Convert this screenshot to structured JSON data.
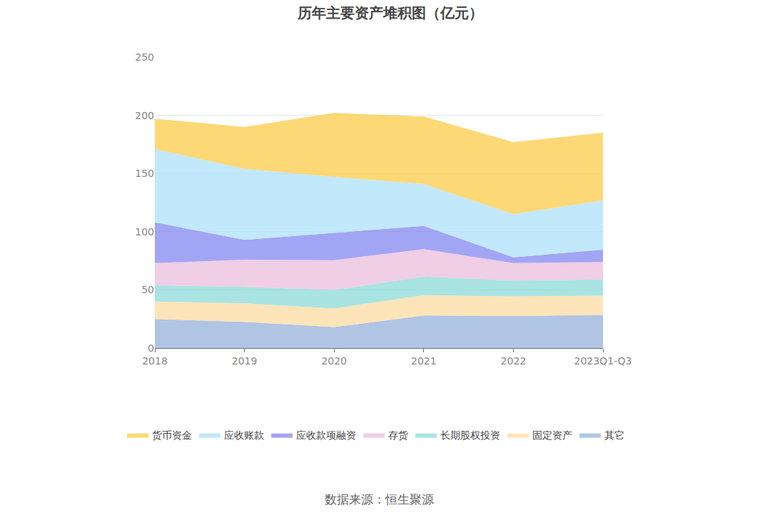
{
  "chart_data": {
    "type": "area",
    "title": "历年主要资产堆积图（亿元）",
    "source": "数据来源：恒生聚源",
    "stacked": true,
    "grid": true,
    "legend": "bottom",
    "categories": [
      "2018",
      "2019",
      "2020",
      "2021",
      "2022",
      "2023Q1-Q3"
    ],
    "ylim": [
      0,
      250
    ],
    "yticks": [
      0,
      50,
      100,
      150,
      200,
      250
    ],
    "series": [
      {
        "name": "其它",
        "color": "#8fadd9",
        "values": [
          25,
          22.5,
          18,
          28,
          27.5,
          28.5
        ]
      },
      {
        "name": "固定资产",
        "color": "#fdd89b",
        "values": [
          15,
          16,
          16,
          17.5,
          17,
          16.5
        ]
      },
      {
        "name": "长期股权投资",
        "color": "#84d8d6",
        "values": [
          14,
          14,
          16,
          16,
          13.5,
          14
        ]
      },
      {
        "name": "存货",
        "color": "#e8b9db",
        "values": [
          19,
          23.5,
          25.5,
          23.5,
          15,
          15
        ]
      },
      {
        "name": "应收款项融资",
        "color": "#7b7ff0",
        "values": [
          35,
          17,
          23.5,
          20,
          5,
          10.5
        ]
      },
      {
        "name": "应收账款",
        "color": "#a8defa",
        "values": [
          63,
          61,
          48,
          36,
          37,
          42.5
        ]
      },
      {
        "name": "货币资金",
        "color": "#fcc73c",
        "values": [
          26,
          36,
          55,
          58,
          62,
          58
        ]
      }
    ]
  }
}
